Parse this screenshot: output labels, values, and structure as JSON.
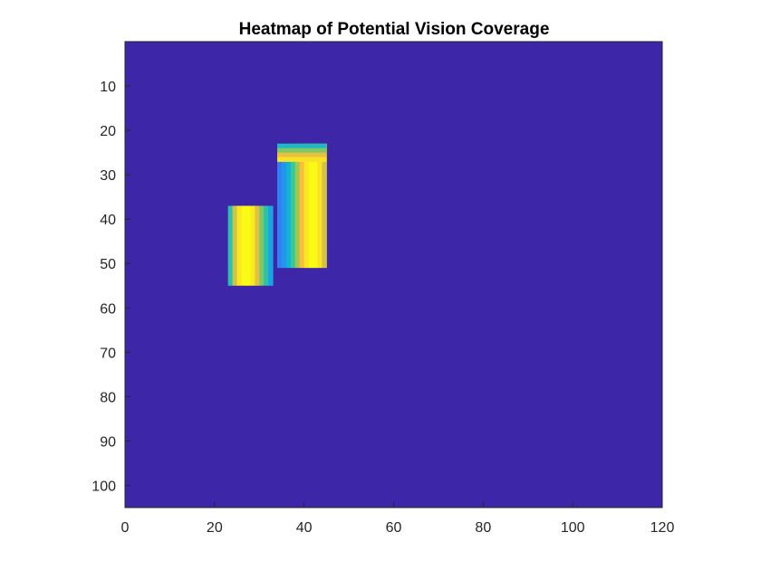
{
  "chart_data": {
    "type": "heatmap",
    "title": "Heatmap of Potential Vision Coverage",
    "xlabel": "",
    "ylabel": "",
    "xlim": [
      0,
      120
    ],
    "ylim": [
      0,
      105
    ],
    "y_reversed": true,
    "grid": false,
    "colorbar": false,
    "colormap": "parula",
    "x_ticks": [
      0,
      20,
      40,
      60,
      80,
      100,
      120
    ],
    "x_tick_labels": [
      "0",
      "20",
      "40",
      "60",
      "80",
      "100",
      "120"
    ],
    "y_ticks": [
      10,
      20,
      30,
      40,
      50,
      60,
      70,
      80,
      90,
      100
    ],
    "y_tick_labels": [
      "10",
      "20",
      "30",
      "40",
      "50",
      "60",
      "70",
      "80",
      "90",
      "100"
    ],
    "background_value": 0,
    "background_color": "#3e26a8",
    "value_range": [
      0,
      1
    ],
    "regions": [
      {
        "name": "lower-left block",
        "x_range": [
          23,
          33
        ],
        "y_range": [
          37,
          55
        ],
        "column_values": [
          0.55,
          0.82,
          0.96,
          1.0,
          1.0,
          0.97,
          0.85,
          0.7,
          0.55,
          0.4
        ]
      },
      {
        "name": "upper-right block",
        "x_range": [
          34,
          45
        ],
        "y_range": [
          23,
          51
        ],
        "column_values": [
          0.28,
          0.35,
          0.45,
          0.6,
          0.75,
          0.88,
          0.96,
          1.0,
          1.0,
          0.95,
          0.82
        ],
        "top_fringe_values": [
          0.5,
          0.7,
          0.85,
          0.95
        ]
      }
    ]
  }
}
